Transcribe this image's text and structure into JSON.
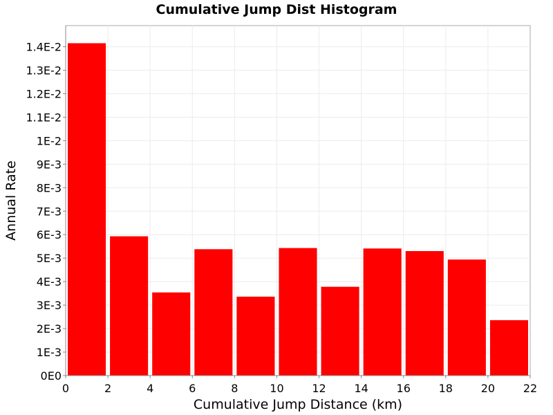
{
  "chart_data": {
    "type": "bar",
    "title": "Cumulative Jump Dist Histogram",
    "xlabel": "Cumulative Jump Distance (km)",
    "ylabel": "Annual Rate",
    "xlim": [
      0,
      22
    ],
    "ylim": [
      0,
      0.0149
    ],
    "bin_width": 2,
    "x": [
      1,
      3,
      5,
      7,
      9,
      11,
      13,
      15,
      17,
      19,
      21
    ],
    "values": [
      0.01415,
      0.00593,
      0.00354,
      0.00538,
      0.00336,
      0.00543,
      0.00378,
      0.00541,
      0.0053,
      0.00494,
      0.00236
    ],
    "x_ticks": [
      0,
      2,
      4,
      6,
      8,
      10,
      12,
      14,
      16,
      18,
      20,
      22
    ],
    "x_tick_labels": [
      "0",
      "2",
      "4",
      "6",
      "8",
      "10",
      "12",
      "14",
      "16",
      "18",
      "20",
      "22"
    ],
    "y_ticks": [
      0,
      0.001,
      0.002,
      0.003,
      0.004,
      0.005,
      0.006,
      0.007,
      0.008,
      0.009,
      0.01,
      0.011,
      0.012,
      0.013,
      0.014
    ],
    "y_tick_labels": [
      "0E0",
      "1E-3",
      "2E-3",
      "3E-3",
      "4E-3",
      "5E-3",
      "6E-3",
      "7E-3",
      "8E-3",
      "9E-3",
      "1E-2",
      "1.1E-2",
      "1.2E-2",
      "1.3E-2",
      "1.4E-2"
    ],
    "bar_color": "#ff0000",
    "grid": true
  }
}
